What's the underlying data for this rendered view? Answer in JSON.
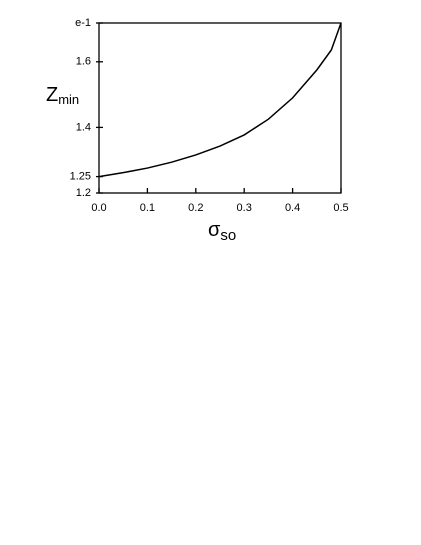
{
  "chart_data": {
    "type": "line",
    "x_label": "σ",
    "x_label_sub": "so",
    "y_label": "Z",
    "y_label_sub": "min",
    "x": [
      0,
      0.05,
      0.1,
      0.15,
      0.2,
      0.25,
      0.3,
      0.35,
      0.4,
      0.45,
      0.48,
      0.5
    ],
    "values": [
      1.25,
      1.262,
      1.276,
      1.294,
      1.316,
      1.343,
      1.377,
      1.425,
      1.49,
      1.575,
      1.636,
      1.71828
    ],
    "color": "#000000",
    "xlim": [
      0,
      0.5
    ],
    "ylim": [
      1.2,
      1.71828
    ],
    "xticks": [
      {
        "value": 0,
        "label": "0.0"
      },
      0.1,
      0.2,
      0.3,
      0.4,
      0.5
    ],
    "yticks": [
      1.2,
      1.25,
      1.4,
      1.6,
      {
        "value": 1.71828,
        "label": "e-1"
      }
    ]
  }
}
